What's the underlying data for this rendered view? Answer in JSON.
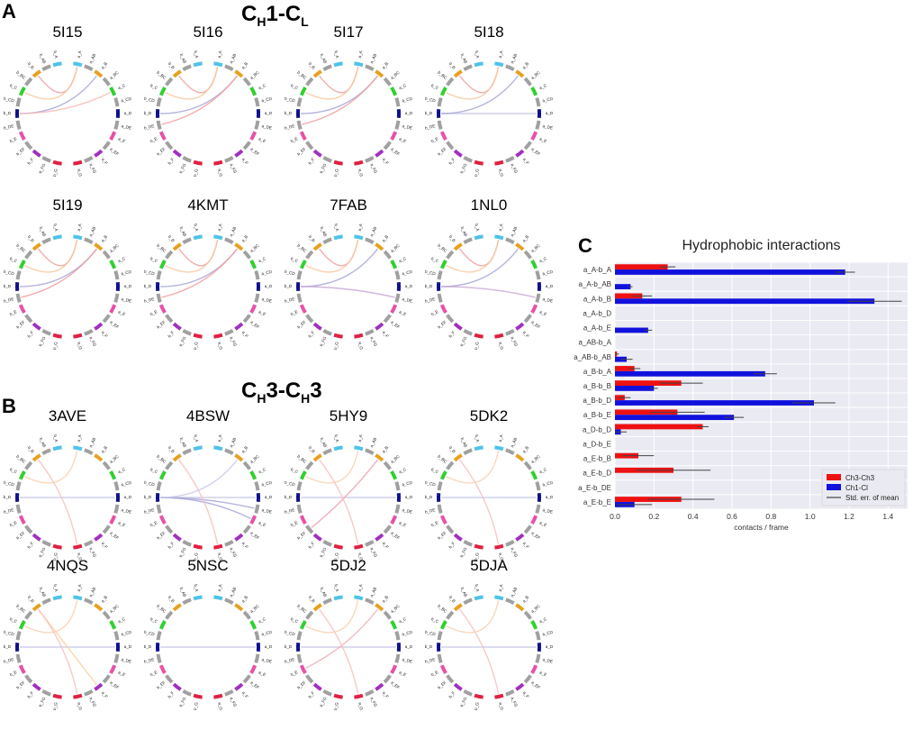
{
  "figure": {
    "panel_a": {
      "letter": "A",
      "title_main": "C",
      "title_sub1": "H",
      "title_mid": "1-C",
      "title_sub2": "L"
    },
    "panel_b": {
      "letter": "B",
      "title_main": "C",
      "title_sub1": "H",
      "title_mid": "3-C",
      "title_sub2": "H",
      "title_end": "3"
    },
    "panel_c": {
      "letter": "C"
    }
  },
  "chord_segments": [
    "a_A",
    "a_AB",
    "a_B",
    "a_BC",
    "a_C",
    "a_CD",
    "a_D",
    "a_DE",
    "a_E",
    "a_EF",
    "a_F",
    "a_FG",
    "a_G",
    "b_A",
    "b_AB",
    "b_B",
    "b_BC",
    "b_C",
    "b_CD",
    "b_D",
    "b_DE",
    "b_E",
    "b_EF",
    "b_F",
    "b_FG",
    "b_G"
  ],
  "segment_colors": {
    "A": "#4fc3e8",
    "AB": "#a0a0a0",
    "B": "#e8a020",
    "BC": "#a0a0a0",
    "C": "#30d030",
    "CD": "#a0a0a0",
    "D": "#10108c",
    "DE": "#a0a0a0",
    "E": "#e850a8",
    "EF": "#a0a0a0",
    "F": "#a030c0",
    "FG": "#a0a0a0",
    "G": "#e02040"
  },
  "chord_diagrams": [
    {
      "name": "5I15",
      "links": [
        [
          "b_D",
          "a_B",
          "#a8a8d8"
        ],
        [
          "b_B",
          "a_A",
          "#f0a0a0"
        ],
        [
          "b_C",
          "a_A",
          "#f8c8a0"
        ],
        [
          "b_D",
          "a_C",
          "#f8b8b8"
        ]
      ]
    },
    {
      "name": "5I16",
      "links": [
        [
          "b_D",
          "a_B",
          "#a8a8d8"
        ],
        [
          "b_B",
          "a_A",
          "#f0a0a0"
        ],
        [
          "b_C",
          "a_A",
          "#f8c8a0"
        ],
        [
          "b_DE",
          "a_B",
          "#f0a0a0"
        ]
      ]
    },
    {
      "name": "5I17",
      "links": [
        [
          "b_D",
          "a_B",
          "#a8a8d8"
        ],
        [
          "b_B",
          "a_A",
          "#f0a0a0"
        ],
        [
          "b_C",
          "a_A",
          "#f8c8a0"
        ],
        [
          "b_DE",
          "a_B",
          "#f0a0a0"
        ]
      ]
    },
    {
      "name": "5I18",
      "links": [
        [
          "b_D",
          "a_D",
          "#c8c8e8"
        ],
        [
          "b_D",
          "a_B",
          "#a8a8d8"
        ],
        [
          "b_B",
          "a_A",
          "#f0a0a0"
        ],
        [
          "b_C",
          "a_A",
          "#f8c8a0"
        ]
      ]
    },
    {
      "name": "5I19",
      "links": [
        [
          "b_D",
          "a_B",
          "#a8a8d8"
        ],
        [
          "b_B",
          "a_A",
          "#f0a0a0"
        ],
        [
          "b_C",
          "a_A",
          "#f8c8a0"
        ],
        [
          "b_DE",
          "a_B",
          "#f0a0a0"
        ]
      ]
    },
    {
      "name": "4KMT",
      "links": [
        [
          "b_D",
          "a_B",
          "#a8a8d8"
        ],
        [
          "b_B",
          "a_A",
          "#f0a0a0"
        ],
        [
          "b_C",
          "a_A",
          "#f8c8a0"
        ],
        [
          "b_DE",
          "a_B",
          "#f0a0a0"
        ]
      ]
    },
    {
      "name": "7FAB",
      "links": [
        [
          "b_D",
          "a_B",
          "#a8a8d8"
        ],
        [
          "b_D",
          "a_DE",
          "#c8a8d8"
        ],
        [
          "b_B",
          "a_A",
          "#f0a0a0"
        ],
        [
          "b_C",
          "a_A",
          "#f8c8a0"
        ]
      ]
    },
    {
      "name": "1NL0",
      "links": [
        [
          "b_D",
          "a_B",
          "#a8a8d8"
        ],
        [
          "b_D",
          "a_DE",
          "#c8a8d8"
        ],
        [
          "b_B",
          "a_A",
          "#f0a0a0"
        ],
        [
          "b_C",
          "a_A",
          "#f8c8a0"
        ]
      ]
    },
    {
      "name": "3AVE",
      "links": [
        [
          "b_D",
          "a_D",
          "#c8c8e8"
        ],
        [
          "b_B",
          "a_G",
          "#f8c0c0"
        ],
        [
          "b_C",
          "a_A",
          "#f8d0b0"
        ]
      ]
    },
    {
      "name": "4BSW",
      "links": [
        [
          "b_D",
          "a_D",
          "#c8c8e8"
        ],
        [
          "b_D",
          "a_DE",
          "#a8a8d8"
        ],
        [
          "b_D",
          "a_E",
          "#a8a8d8"
        ],
        [
          "b_D",
          "a_B",
          "#c8c8e8"
        ],
        [
          "b_B",
          "a_G",
          "#f8c0c0"
        ]
      ]
    },
    {
      "name": "5HY9",
      "links": [
        [
          "b_D",
          "a_D",
          "#c8c8e8"
        ],
        [
          "b_EF",
          "a_B",
          "#f0a0b0"
        ],
        [
          "b_B",
          "a_G",
          "#f8c0c0"
        ],
        [
          "b_C",
          "a_A",
          "#f8d0b0"
        ]
      ]
    },
    {
      "name": "5DK2",
      "links": [
        [
          "b_D",
          "a_D",
          "#c8c8e8"
        ],
        [
          "b_B",
          "a_G",
          "#f8c0c0"
        ],
        [
          "b_C",
          "a_A",
          "#f8d0b0"
        ]
      ]
    },
    {
      "name": "4NQS",
      "links": [
        [
          "b_D",
          "a_D",
          "#c8c8e8"
        ],
        [
          "b_B",
          "a_F",
          "#f8d0a0"
        ],
        [
          "b_B",
          "a_G",
          "#f8c0c0"
        ],
        [
          "b_C",
          "a_A",
          "#f8d0b0"
        ]
      ]
    },
    {
      "name": "5NSC",
      "links": [
        [
          "b_D",
          "a_D",
          "#c8c8e8"
        ]
      ]
    },
    {
      "name": "5DJ2",
      "links": [
        [
          "b_D",
          "a_D",
          "#c8c8e8"
        ],
        [
          "b_E",
          "a_B",
          "#f0b0b8"
        ],
        [
          "b_B",
          "a_G",
          "#f8c0c0"
        ],
        [
          "b_C",
          "a_A",
          "#f8d0b0"
        ]
      ]
    },
    {
      "name": "5DJA",
      "links": [
        [
          "b_D",
          "a_D",
          "#c8c8e8"
        ],
        [
          "b_B",
          "a_G",
          "#f8c0c0"
        ],
        [
          "b_C",
          "a_A",
          "#f8d0b0"
        ]
      ]
    }
  ],
  "chart_data": {
    "type": "bar",
    "orientation": "horizontal",
    "title": "Hydrophobic interactions",
    "xlabel": "contacts / frame",
    "ylabel": "",
    "xlim": [
      0,
      1.5
    ],
    "xticks": [
      "0.0",
      "0.2",
      "0.4",
      "0.6",
      "0.8",
      "1.0",
      "1.2",
      "1.4"
    ],
    "categories": [
      "a_A-b_A",
      "a_A-b_AB",
      "a_A-b_B",
      "a_A-b_D",
      "a_A-b_E",
      "a_AB-b_A",
      "a_AB-b_AB",
      "a_B-b_A",
      "a_B-b_B",
      "a_B-b_D",
      "a_B-b_E",
      "a_D-b_D",
      "a_D-b_E",
      "a_E-b_B",
      "a_E-b_D",
      "a_E-b_DE",
      "a_E-b_E"
    ],
    "series": [
      {
        "name": "Ch3-Ch3",
        "color": "#ee1111",
        "values": [
          0.27,
          0.0,
          0.14,
          0.0,
          0.0,
          0.0,
          0.01,
          0.1,
          0.34,
          0.05,
          0.32,
          0.45,
          0.0,
          0.12,
          0.3,
          0.0,
          0.34
        ],
        "errors": [
          0.04,
          0.0,
          0.05,
          0.0,
          0.0,
          0.0,
          0.01,
          0.03,
          0.11,
          0.03,
          0.14,
          0.03,
          0.0,
          0.08,
          0.19,
          0.0,
          0.17
        ]
      },
      {
        "name": "Ch1-Cl",
        "color": "#1111dd",
        "values": [
          1.18,
          0.08,
          1.33,
          0.0,
          0.17,
          0.0,
          0.06,
          0.77,
          0.2,
          1.02,
          0.61,
          0.03,
          0.0,
          0.0,
          0.0,
          0.0,
          0.1
        ],
        "errors": [
          0.05,
          0.01,
          0.14,
          0.0,
          0.02,
          0.0,
          0.03,
          0.06,
          0.02,
          0.11,
          0.05,
          0.03,
          0.0,
          0.0,
          0.0,
          0.0,
          0.09
        ]
      }
    ],
    "legend": {
      "position": "bottom-right",
      "labels": [
        "Ch3-Ch3",
        "Ch1-Cl",
        "Std. err. of mean"
      ]
    }
  }
}
